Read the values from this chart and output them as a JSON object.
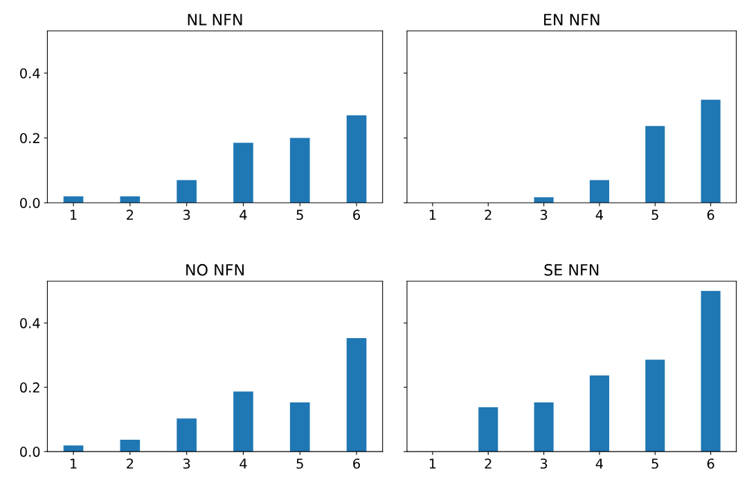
{
  "chart_data": [
    {
      "type": "bar",
      "title": "NL NFN",
      "categories": [
        "1",
        "2",
        "3",
        "4",
        "5",
        "6"
      ],
      "values": [
        0.02,
        0.02,
        0.07,
        0.185,
        0.2,
        0.27
      ],
      "color": "#1f77b4",
      "ylim": [
        0,
        0.53
      ],
      "yticks": [
        {
          "value": 0,
          "label": "0.0"
        },
        {
          "value": 0.2,
          "label": "0.2"
        },
        {
          "value": 0.4,
          "label": "0.4"
        }
      ],
      "grid": false
    },
    {
      "type": "bar",
      "title": "EN NFN",
      "categories": [
        "1",
        "2",
        "3",
        "4",
        "5",
        "6"
      ],
      "values": [
        0,
        0,
        0.017,
        0.07,
        0.237,
        0.318
      ],
      "color": "#1f77b4",
      "ylim": [
        0,
        0.53
      ],
      "yticks": [
        {
          "value": 0,
          "label": null
        },
        {
          "value": 0.2,
          "label": null
        },
        {
          "value": 0.4,
          "label": null
        }
      ],
      "tick_labels": "x",
      "grid": false
    },
    {
      "type": "bar",
      "title": "NO NFN",
      "categories": [
        "1",
        "2",
        "3",
        "4",
        "5",
        "6"
      ],
      "values": [
        0.019,
        0.037,
        0.103,
        0.187,
        0.153,
        0.353
      ],
      "color": "#1f77b4",
      "ylim": [
        0,
        0.53
      ],
      "yticks": [
        {
          "value": 0,
          "label": "0.0"
        },
        {
          "value": 0.2,
          "label": "0.2"
        },
        {
          "value": 0.4,
          "label": "0.4"
        }
      ],
      "grid": false
    },
    {
      "type": "bar",
      "title": "SE NFN",
      "categories": [
        "1",
        "2",
        "3",
        "4",
        "5",
        "6"
      ],
      "values": [
        0,
        0.138,
        0.153,
        0.237,
        0.286,
        0.5
      ],
      "color": "#1f77b4",
      "ylim": [
        0,
        0.53
      ],
      "yticks": [
        {
          "value": 0,
          "label": null
        },
        {
          "value": 0.2,
          "label": null
        },
        {
          "value": 0.4,
          "label": null
        }
      ],
      "tick_labels": "x",
      "grid": false
    }
  ]
}
